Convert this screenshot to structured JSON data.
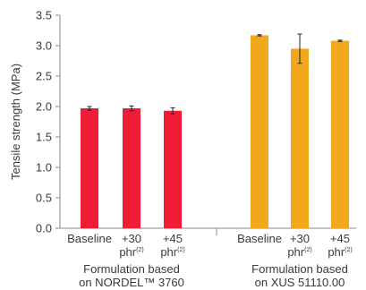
{
  "chart_data": {
    "type": "bar",
    "ylabel": "Tensile strength (MPa)",
    "ylim": [
      0,
      3.5
    ],
    "yticks": [
      "0.0",
      "0.5",
      "1.0",
      "1.5",
      "2.0",
      "2.5",
      "3.0",
      "3.5"
    ],
    "grid": false,
    "groups": [
      {
        "label_lines": [
          "Formulation based",
          "on NORDEL™ 3760"
        ],
        "color": "#ee1c35",
        "bars": [
          {
            "label_lines": [
              "Baseline"
            ],
            "label_sup": "",
            "value": 1.97,
            "error": 0.03
          },
          {
            "label_lines": [
              "+30",
              "phr"
            ],
            "label_sup": "(2)",
            "value": 1.97,
            "error": 0.04
          },
          {
            "label_lines": [
              "+45",
              "phr"
            ],
            "label_sup": "(2)",
            "value": 1.93,
            "error": 0.05
          }
        ]
      },
      {
        "label_lines": [
          "Formulation based",
          "on XUS 51110.00"
        ],
        "color": "#f2a81d",
        "bars": [
          {
            "label_lines": [
              "Baseline"
            ],
            "label_sup": "",
            "value": 3.17,
            "error": 0.01
          },
          {
            "label_lines": [
              "+30",
              "phr"
            ],
            "label_sup": "(2)",
            "value": 2.95,
            "error": 0.24
          },
          {
            "label_lines": [
              "+45",
              "phr"
            ],
            "label_sup": "(2)",
            "value": 3.08,
            "error": 0.01
          }
        ]
      }
    ]
  }
}
